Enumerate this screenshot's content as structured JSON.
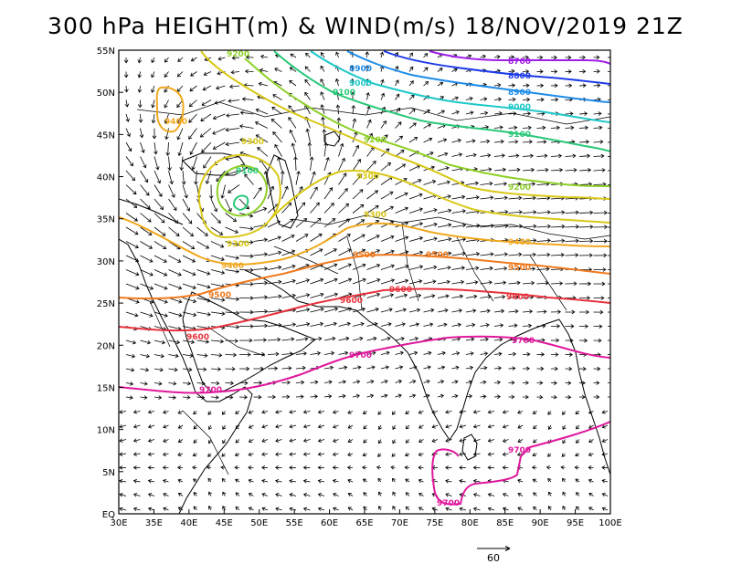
{
  "title": "300 hPa HEIGHT(m) & WIND(m/s) 18/NOV/2019 21Z",
  "map": {
    "lon_range": [
      30,
      100
    ],
    "lat_range": [
      0,
      55
    ],
    "x_ticks": [
      "30E",
      "35E",
      "40E",
      "45E",
      "50E",
      "55E",
      "60E",
      "65E",
      "70E",
      "75E",
      "80E",
      "85E",
      "90E",
      "95E",
      "100E"
    ],
    "y_ticks": [
      "EQ",
      "5N",
      "10N",
      "15N",
      "20N",
      "25N",
      "30N",
      "35N",
      "40N",
      "45N",
      "50N",
      "55N"
    ],
    "wind_reference": {
      "label": "60",
      "value": 60
    },
    "colors": {
      "frame": "#000000",
      "vectors": "#000000",
      "coast": "#000000"
    }
  },
  "contours": [
    {
      "level": "9700",
      "color": "#e0189c",
      "labels": [
        "9700",
        "9700",
        "9700",
        "9700",
        "9700"
      ]
    },
    {
      "level": "9600",
      "color": "#e8323c",
      "labels": [
        "9600",
        "9600",
        "9600",
        "9600"
      ]
    },
    {
      "level": "9500",
      "color": "#f07a1e",
      "labels": [
        "9500",
        "9500",
        "9500",
        "9500"
      ]
    },
    {
      "level": "9400",
      "color": "#f0a81e",
      "labels": [
        "9400",
        "9400",
        "9400"
      ]
    },
    {
      "level": "9300",
      "color": "#d8c818",
      "labels": [
        "9300",
        "9300",
        "9300",
        "9300"
      ]
    },
    {
      "level": "9200",
      "color": "#8ed028",
      "labels": [
        "9200",
        "9200",
        "9200"
      ]
    },
    {
      "level": "9100",
      "color": "#28c878",
      "labels": [
        "9100",
        "9100",
        "9100"
      ]
    },
    {
      "level": "9000",
      "color": "#1ec8c8",
      "labels": [
        "9000",
        "9000"
      ]
    },
    {
      "level": "8900",
      "color": "#1e8ce8",
      "labels": [
        "8900",
        "8900"
      ]
    },
    {
      "level": "8800",
      "color": "#1e3ce8",
      "labels": [
        "8800"
      ]
    },
    {
      "level": "8700",
      "color": "#a01ee8",
      "labels": [
        "8700"
      ]
    }
  ]
}
